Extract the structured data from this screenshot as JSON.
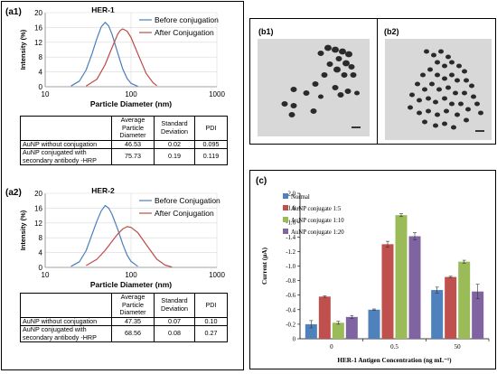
{
  "panel_left": {
    "a1": {
      "label": "(a1)",
      "chart_data": {
        "type": "line",
        "title": "HER-1",
        "xlabel": "Particle Diameter (nm)",
        "ylabel": "Intensity (%)",
        "xscale": "log",
        "xlim": [
          10,
          1000
        ],
        "ylim": [
          0,
          20
        ],
        "xticks": [
          "10",
          "100",
          "1000"
        ],
        "yticks": [
          "0",
          "4",
          "8",
          "12",
          "16",
          "20"
        ],
        "legend": "top-right",
        "series": [
          {
            "name": "Before conjugation",
            "color": "#4a7ebb",
            "x": [
              20,
              25,
              30,
              35,
              40,
              45,
              50,
              55,
              60,
              70,
              80,
              90,
              100,
              120
            ],
            "y": [
              0.2,
              1.5,
              4.5,
              8.8,
              13,
              16.2,
              17.4,
              16.4,
              14.2,
              9.1,
              4.8,
              2.2,
              0.9,
              0.1
            ]
          },
          {
            "name": "After Conjugation",
            "color": "#be4b48",
            "x": [
              30,
              40,
              50,
              60,
              70,
              75,
              80,
              90,
              100,
              120,
              150,
              180,
              200
            ],
            "y": [
              0.2,
              2,
              6,
              10.5,
              14.2,
              15.2,
              15.6,
              15,
              13.3,
              8.9,
              3.6,
              1.1,
              0.3
            ]
          }
        ]
      },
      "table": {
        "header": [
          "",
          "Average Particle Diameter",
          "Standard Deviation",
          "PDI"
        ],
        "rows": [
          [
            "AuNP without conjugation",
            "46.53",
            "0.02",
            "0.095"
          ],
          [
            "AuNP  conjugated with secondary antibody -HRP",
            "75.73",
            "0.19",
            "0.119"
          ]
        ]
      }
    },
    "a2": {
      "label": "(a2)",
      "chart_data": {
        "type": "line",
        "title": "HER-2",
        "xlabel": "Particle Diameter (nm)",
        "ylabel": "Intensity (%)",
        "xscale": "log",
        "xlim": [
          10,
          1000
        ],
        "ylim": [
          0,
          20
        ],
        "xticks": [
          "10",
          "100",
          "1000"
        ],
        "yticks": [
          "0",
          "4",
          "8",
          "12",
          "16",
          "20"
        ],
        "legend": "top-right",
        "series": [
          {
            "name": "Before Conjugation",
            "color": "#4a7ebb",
            "x": [
              20,
              25,
              30,
              35,
              40,
              45,
              50,
              55,
              60,
              70,
              80,
              90,
              100,
              120
            ],
            "y": [
              0.3,
              1.5,
              4.5,
              8.8,
              12.5,
              15.3,
              16.7,
              16,
              14.4,
              10.3,
              6.3,
              3.3,
              1.6,
              0.3
            ]
          },
          {
            "name": "After Conjugation",
            "color": "#be4b48",
            "x": [
              30,
              40,
              50,
              60,
              70,
              80,
              90,
              100,
              120,
              150,
              200,
              250,
              300
            ],
            "y": [
              0.5,
              2.2,
              4.6,
              7,
              9,
              10.4,
              11,
              10.8,
              9.4,
              6.2,
              2.2,
              0.6,
              0.1
            ]
          }
        ]
      },
      "table": {
        "header": [
          "",
          "Average Particle Diameter",
          "Standard Deviation",
          "PDI"
        ],
        "rows": [
          [
            "AuNP without conjugation",
            "47.35",
            "0.07",
            "0.10"
          ],
          [
            "AuNP  conjugated with secondary antibody -HRP",
            "68.56",
            "0.08",
            "0.27"
          ]
        ]
      }
    }
  },
  "panel_b": {
    "b1": {
      "label": "(b1)",
      "scale_label": ""
    },
    "b2": {
      "label": "(b2)",
      "scale_label": ""
    }
  },
  "panel_c": {
    "label": "(c)",
    "chart_data": {
      "type": "bar",
      "xlabel": "HER-1 Antigen Concentration (ng mL⁻¹)",
      "ylabel": "Current (µA)",
      "categories": [
        "0",
        "0.5",
        "50"
      ],
      "ylim": [
        0,
        -2.0
      ],
      "yticks": [
        "0",
        "-0.2",
        "-0.4",
        "-0.6",
        "-0.8",
        "-1.0",
        "-1.2",
        "-1.4",
        "-1.6",
        "-1.8",
        "-2.0"
      ],
      "legend": "top-left",
      "series": [
        {
          "name": "Normal",
          "color": "#4f81bd",
          "values": [
            -0.2,
            -0.4,
            -0.67
          ],
          "errors": [
            0.05,
            0.01,
            0.04
          ]
        },
        {
          "name": "AuNP conjugate  1:5",
          "color": "#c0504d",
          "values": [
            -0.58,
            -1.3,
            -0.85
          ],
          "errors": [
            0.01,
            0.04,
            0.01
          ]
        },
        {
          "name": "AuNP conjugate  1:10",
          "color": "#9bbb59",
          "values": [
            -0.22,
            -1.7,
            -1.06
          ],
          "errors": [
            0.02,
            0.02,
            0.02
          ]
        },
        {
          "name": "AuNP conjugate  1:20",
          "color": "#8064a2",
          "values": [
            -0.3,
            -1.41,
            -0.65
          ],
          "errors": [
            0.02,
            0.05,
            0.1
          ]
        }
      ]
    }
  }
}
